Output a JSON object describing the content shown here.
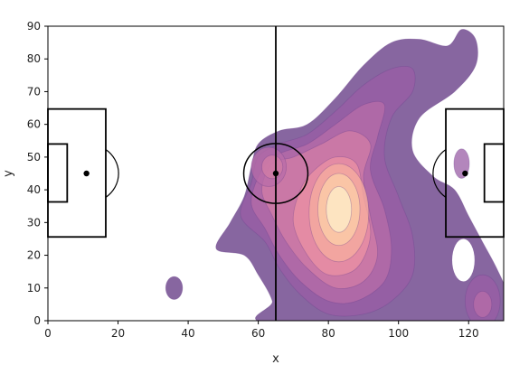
{
  "chart_data": {
    "type": "heatmap",
    "title": "",
    "xlabel": "x",
    "ylabel": "y",
    "xlim": [
      0,
      130
    ],
    "ylim": [
      0,
      90
    ],
    "xticks": [
      0,
      20,
      40,
      60,
      80,
      100,
      120
    ],
    "yticks": [
      0,
      10,
      20,
      30,
      40,
      50,
      60,
      70,
      80,
      90
    ],
    "grid": false,
    "pitch": {
      "line_color": "#000000",
      "halfway_x": 65,
      "center_spot": [
        65,
        45
      ],
      "center_circle_radius": 9.15,
      "left_penalty_box": [
        0,
        25.6,
        16.5,
        64.7
      ],
      "left_six_yard_box": [
        0,
        36.3,
        5.5,
        54.0
      ],
      "left_penalty_spot": [
        11,
        45
      ],
      "right_penalty_box": [
        113.5,
        25.6,
        130,
        64.7
      ],
      "right_six_yard_box": [
        124.5,
        36.3,
        130,
        54.0
      ],
      "right_penalty_spot": [
        119,
        45
      ],
      "penalty_arc_radius": 9.15
    },
    "density": {
      "colormap": "magma",
      "alpha": 0.55,
      "levels": [
        {
          "level": 1,
          "color": "#7a5596"
        },
        {
          "level": 2,
          "color": "#9a5ea6"
        },
        {
          "level": 3,
          "color": "#b86ca8"
        },
        {
          "level": 4,
          "color": "#d37da6"
        },
        {
          "level": 5,
          "color": "#ec92a3"
        },
        {
          "level": 6,
          "color": "#f7ae9f"
        },
        {
          "level": 7,
          "color": "#fcd0a8"
        },
        {
          "level": 8,
          "color": "#fdedc9"
        }
      ],
      "peak": [
        83,
        34
      ],
      "secondary_peak": [
        63,
        47
      ]
    }
  }
}
